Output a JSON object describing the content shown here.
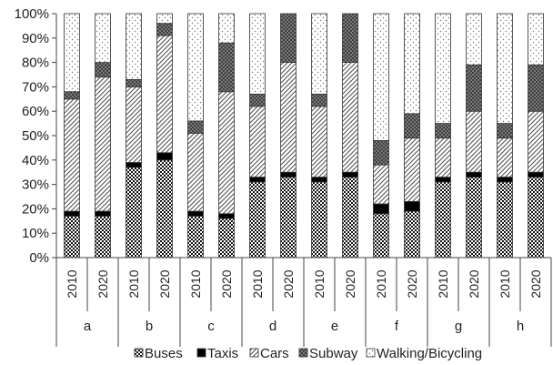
{
  "chart_data": {
    "type": "bar",
    "stacked": true,
    "title": "",
    "xlabel": "",
    "ylabel": "",
    "ylim": [
      0,
      100
    ],
    "y_ticks": [
      "0%",
      "10%",
      "20%",
      "30%",
      "40%",
      "50%",
      "60%",
      "70%",
      "80%",
      "90%",
      "100%"
    ],
    "groups": [
      "a",
      "b",
      "c",
      "d",
      "e",
      "f",
      "g",
      "h"
    ],
    "years": [
      "2010",
      "2020"
    ],
    "categories": [
      "a 2010",
      "a 2020",
      "b 2010",
      "b 2020",
      "c 2010",
      "c 2020",
      "d 2010",
      "d 2020",
      "e 2010",
      "e 2020",
      "f 2010",
      "f 2020",
      "g 2010",
      "g 2020",
      "h 2010",
      "h 2020"
    ],
    "legend_position": "bottom",
    "grid": false,
    "series": [
      {
        "name": "Buses",
        "pattern": "checker",
        "values": [
          17,
          17,
          37,
          40,
          17,
          16,
          31,
          33,
          31,
          33,
          18,
          19,
          31,
          33,
          31,
          33
        ]
      },
      {
        "name": "Taxis",
        "pattern": "solid",
        "values": [
          2,
          2,
          2,
          3,
          2,
          2,
          2,
          2,
          2,
          2,
          4,
          4,
          2,
          2,
          2,
          2
        ]
      },
      {
        "name": "Cars",
        "pattern": "diagonal",
        "values": [
          46,
          55,
          31,
          48,
          32,
          50,
          29,
          45,
          29,
          45,
          16,
          26,
          16,
          25,
          16,
          25
        ]
      },
      {
        "name": "Subway",
        "pattern": "crosshatch",
        "values": [
          3,
          6,
          3,
          5,
          5,
          20,
          5,
          20,
          5,
          20,
          10,
          10,
          6,
          19,
          6,
          19
        ]
      },
      {
        "name": "Walking/Bicycling",
        "pattern": "dots",
        "values": [
          32,
          20,
          27,
          4,
          44,
          12,
          33,
          0,
          33,
          0,
          52,
          41,
          45,
          21,
          45,
          21
        ]
      }
    ]
  }
}
